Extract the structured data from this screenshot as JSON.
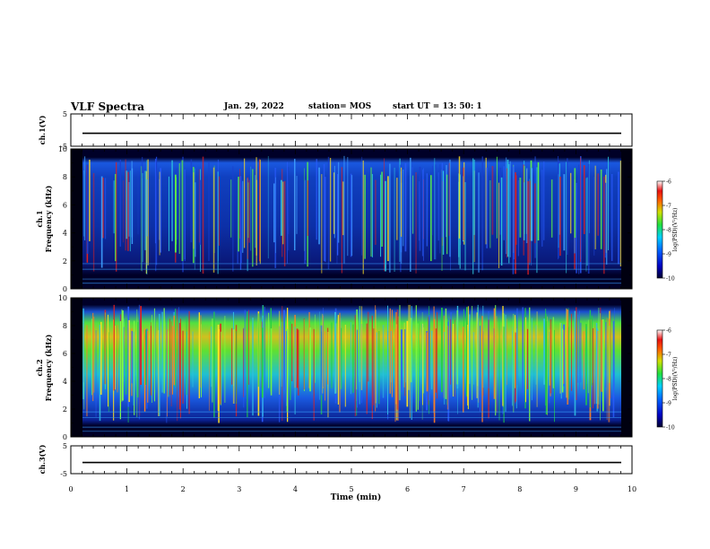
{
  "header": {
    "title": "VLF Spectra",
    "date": "Jan. 29, 2022",
    "station": "station= MOS",
    "start": "start  UT  =   13: 50: 1"
  },
  "chart_data": [
    {
      "type": "line",
      "panel": "ch1-waveform",
      "ylabel": "ch.1(V)",
      "ylim": [
        -5,
        5
      ],
      "yticks": [
        "5",
        "-5"
      ],
      "xlim": [
        0,
        10
      ],
      "description_values": {
        "baseline_V": -1
      }
    },
    {
      "type": "heatmap",
      "panel": "ch1-spectrogram",
      "ylabel": "ch.1\nFrequency (kHz)",
      "ylim": [
        0,
        10
      ],
      "yticks": [
        "0",
        "2",
        "4",
        "6",
        "8",
        "10"
      ],
      "xlim": [
        0,
        10
      ],
      "colorbar": {
        "label": "log(PSD)(V²/Hz)",
        "range": [
          -10,
          -6
        ],
        "ticks": [
          "-6",
          "-7",
          "-8",
          "-9",
          "-10"
        ]
      },
      "color": "#1a44d8"
    },
    {
      "type": "heatmap",
      "panel": "ch2-spectrogram",
      "ylabel": "ch.2\nFrequency (kHz)",
      "ylim": [
        0,
        10
      ],
      "yticks": [
        "0",
        "2",
        "4",
        "6",
        "8",
        "10"
      ],
      "xlim": [
        0,
        10
      ],
      "colorbar": {
        "label": "log(PSD)(V²/Hz)",
        "range": [
          -10,
          -6
        ],
        "ticks": [
          "-6",
          "-7",
          "-8",
          "-9",
          "-10"
        ]
      },
      "color": "#2ed84a"
    },
    {
      "type": "line",
      "panel": "ch3-waveform",
      "ylabel": "ch.3(V)",
      "ylim": [
        -5,
        5
      ],
      "yticks": [
        "5",
        "-5"
      ],
      "xlim": [
        0,
        10
      ],
      "xlabel": "Time  (min)",
      "xticks": [
        "0",
        "1",
        "2",
        "3",
        "4",
        "5",
        "6",
        "7",
        "8",
        "9",
        "10"
      ],
      "description_values": {
        "baseline_V": -1
      }
    }
  ],
  "colors": {
    "background": "#000033",
    "ch1_dominant": "#1a44d8",
    "ch2_dominant": "#2ed84a",
    "hot": "#e8201a"
  }
}
